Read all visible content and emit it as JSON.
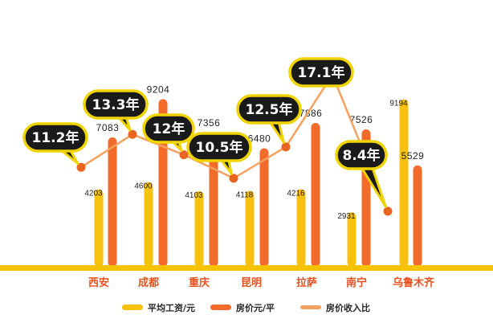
{
  "chart_data": {
    "type": "bar",
    "categories": [
      "西安",
      "成都",
      "重庆",
      "昆明",
      "拉萨",
      "南宁",
      "乌鲁木齐"
    ],
    "series": [
      {
        "name": "平均工资/元",
        "kind": "bar",
        "color": "#f7c20f",
        "values": [
          4203,
          4600,
          4103,
          4118,
          4216,
          2931,
          9194
        ]
      },
      {
        "name": "房价元/平",
        "kind": "bar",
        "color": "#f26b2b",
        "values": [
          7083,
          9204,
          7356,
          6480,
          7886,
          7526,
          5529
        ]
      },
      {
        "name": "房价收入比",
        "kind": "line",
        "color": "#f4a15f",
        "values": [
          11.2,
          13.3,
          12,
          10.5,
          12.5,
          17.1,
          8.4
        ],
        "labels": [
          "11.2年",
          "13.3年",
          "12年",
          "10.5年",
          "12.5年",
          "17.1年",
          "8.4年"
        ]
      }
    ],
    "legend": "bottom",
    "grid": false
  },
  "colors": {
    "wage": "#f7c20f",
    "price": "#f26b2b",
    "ratio_line": "#f4a15f",
    "baseline": "#f5c200",
    "bubble_fill": "#1a1a1a",
    "bubble_border": "#f0d400",
    "category_text": "#e8511f"
  }
}
